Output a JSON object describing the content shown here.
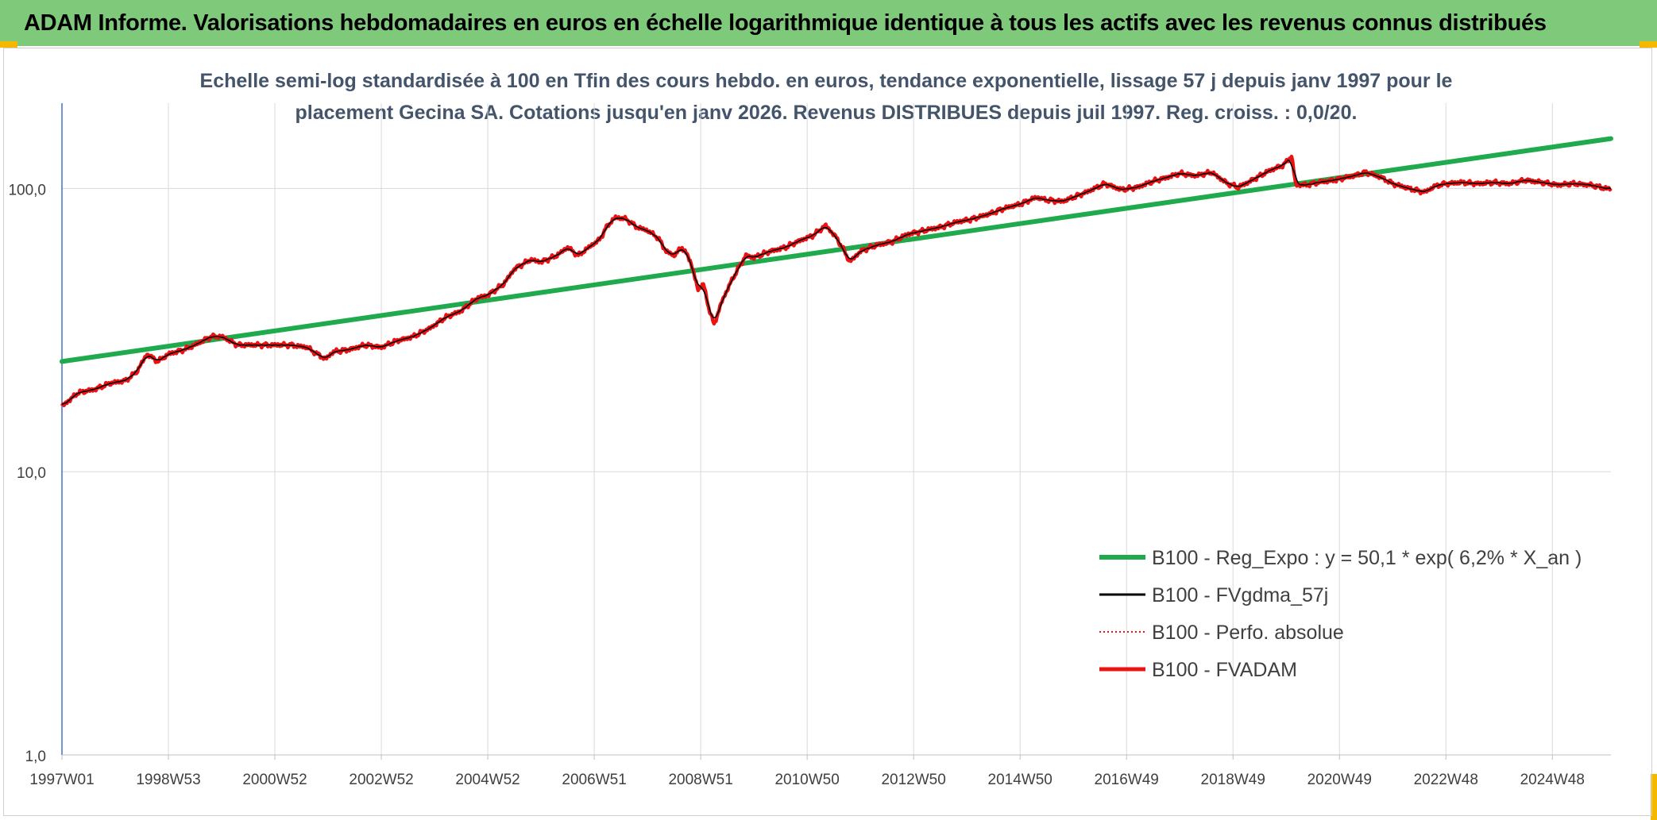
{
  "banner_title": "ADAM Informe. Valorisations hebdomadaires en euros en échelle logarithmique identique à tous les actifs avec les revenus connus distribués",
  "colors": {
    "banner": "#7fc97a",
    "accent": "#f5b800",
    "reg": "#1faa4d",
    "fvgdma": "#000000",
    "perfo": "#e8141a",
    "fvadam": "#ee1111",
    "title": "#44546a"
  },
  "chart_data": {
    "type": "line",
    "title_line1": "Echelle semi-log standardisée à 100 en Tfin des cours hebdo. en euros, tendance exponentielle, lissage 57 j depuis janv 1997 pour le",
    "title_line2": "placement Gecina SA. Cotations jusqu'en janv 2026. Revenus DISTRIBUES depuis juil 1997. Reg. croiss. : 0,0/20.",
    "y_scale": "log",
    "ylim": [
      1,
      200
    ],
    "y_ticks": [
      {
        "value": 1,
        "label": "1,0"
      },
      {
        "value": 10,
        "label": "10,0"
      },
      {
        "value": 100,
        "label": "100,0"
      }
    ],
    "xlim": [
      1997.0,
      2026.1
    ],
    "x_ticks": [
      {
        "value": 1997.0,
        "label": "1997W01"
      },
      {
        "value": 1999.0,
        "label": "1998W53"
      },
      {
        "value": 2001.0,
        "label": "2000W52"
      },
      {
        "value": 2003.0,
        "label": "2002W52"
      },
      {
        "value": 2005.0,
        "label": "2004W52"
      },
      {
        "value": 2007.0,
        "label": "2006W51"
      },
      {
        "value": 2009.0,
        "label": "2008W51"
      },
      {
        "value": 2011.0,
        "label": "2010W50"
      },
      {
        "value": 2013.0,
        "label": "2012W50"
      },
      {
        "value": 2015.0,
        "label": "2014W50"
      },
      {
        "value": 2017.0,
        "label": "2016W49"
      },
      {
        "value": 2019.0,
        "label": "2018W49"
      },
      {
        "value": 2021.0,
        "label": "2020W49"
      },
      {
        "value": 2023.0,
        "label": "2022W48"
      },
      {
        "value": 2025.0,
        "label": "2024W48"
      }
    ],
    "legend_position": "bottom-right",
    "grid": true,
    "series": [
      {
        "name": "B100 - Reg_Expo : y = 50,1 * exp( 6,2% *  X_an )",
        "style": "thick-green",
        "points": [
          [
            1997.0,
            24.5
          ],
          [
            2026.1,
            150
          ]
        ]
      },
      {
        "name": "B100 - FVgdma_57j",
        "style": "thin-black",
        "smooth_of": "fvadam"
      },
      {
        "name": "B100 - Perfo. absolue",
        "style": "dotted-red",
        "same_as": "fvadam"
      },
      {
        "name": "B100 - FVADAM",
        "style": "thick-red",
        "points": [
          [
            1997.0,
            17
          ],
          [
            1997.3,
            19
          ],
          [
            1997.6,
            19.5
          ],
          [
            1997.9,
            20.5
          ],
          [
            1998.2,
            21
          ],
          [
            1998.4,
            22.5
          ],
          [
            1998.6,
            26
          ],
          [
            1998.8,
            24.5
          ],
          [
            1999.0,
            26
          ],
          [
            1999.3,
            27
          ],
          [
            1999.5,
            28
          ],
          [
            1999.8,
            30
          ],
          [
            2000.0,
            30
          ],
          [
            2000.3,
            28
          ],
          [
            2000.6,
            28
          ],
          [
            2001.0,
            28
          ],
          [
            2001.3,
            28
          ],
          [
            2001.6,
            27.5
          ],
          [
            2001.8,
            26
          ],
          [
            2001.95,
            25
          ],
          [
            2002.1,
            26.5
          ],
          [
            2002.4,
            27
          ],
          [
            2002.7,
            28
          ],
          [
            2003.0,
            27.5
          ],
          [
            2003.3,
            29
          ],
          [
            2003.6,
            30
          ],
          [
            2003.9,
            32
          ],
          [
            2004.2,
            35
          ],
          [
            2004.5,
            37
          ],
          [
            2004.8,
            41
          ],
          [
            2005.0,
            42
          ],
          [
            2005.3,
            46
          ],
          [
            2005.5,
            52
          ],
          [
            2005.8,
            56
          ],
          [
            2006.0,
            55
          ],
          [
            2006.3,
            58
          ],
          [
            2006.5,
            62
          ],
          [
            2006.7,
            58
          ],
          [
            2006.9,
            62
          ],
          [
            2007.1,
            66
          ],
          [
            2007.25,
            74
          ],
          [
            2007.4,
            79
          ],
          [
            2007.6,
            78
          ],
          [
            2007.8,
            73
          ],
          [
            2008.0,
            71
          ],
          [
            2008.2,
            67
          ],
          [
            2008.35,
            60
          ],
          [
            2008.5,
            58
          ],
          [
            2008.65,
            62
          ],
          [
            2008.8,
            56
          ],
          [
            2008.95,
            44
          ],
          [
            2009.05,
            46
          ],
          [
            2009.15,
            38
          ],
          [
            2009.25,
            33
          ],
          [
            2009.4,
            40
          ],
          [
            2009.55,
            46
          ],
          [
            2009.7,
            52
          ],
          [
            2009.85,
            58
          ],
          [
            2010.0,
            57
          ],
          [
            2010.3,
            60
          ],
          [
            2010.6,
            62
          ],
          [
            2010.9,
            66
          ],
          [
            2011.1,
            68
          ],
          [
            2011.35,
            74
          ],
          [
            2011.55,
            67
          ],
          [
            2011.7,
            60
          ],
          [
            2011.8,
            55
          ],
          [
            2012.0,
            60
          ],
          [
            2012.3,
            63
          ],
          [
            2012.6,
            65
          ],
          [
            2012.9,
            69
          ],
          [
            2013.2,
            71
          ],
          [
            2013.5,
            73
          ],
          [
            2013.8,
            76
          ],
          [
            2014.1,
            78
          ],
          [
            2014.4,
            81
          ],
          [
            2014.7,
            85
          ],
          [
            2015.0,
            88
          ],
          [
            2015.3,
            93
          ],
          [
            2015.5,
            91
          ],
          [
            2015.8,
            90
          ],
          [
            2016.0,
            93
          ],
          [
            2016.3,
            98
          ],
          [
            2016.6,
            104
          ],
          [
            2016.9,
            99
          ],
          [
            2017.2,
            101
          ],
          [
            2017.5,
            106
          ],
          [
            2017.8,
            110
          ],
          [
            2018.0,
            113
          ],
          [
            2018.3,
            111
          ],
          [
            2018.6,
            114
          ],
          [
            2018.9,
            104
          ],
          [
            2019.1,
            101
          ],
          [
            2019.4,
            108
          ],
          [
            2019.7,
            116
          ],
          [
            2019.95,
            121
          ],
          [
            2020.1,
            130
          ],
          [
            2020.18,
            103
          ],
          [
            2020.4,
            103
          ],
          [
            2020.6,
            105
          ],
          [
            2020.9,
            107
          ],
          [
            2021.2,
            110
          ],
          [
            2021.5,
            114
          ],
          [
            2021.8,
            109
          ],
          [
            2022.0,
            104
          ],
          [
            2022.3,
            100
          ],
          [
            2022.6,
            97
          ],
          [
            2022.8,
            102
          ],
          [
            2023.0,
            104
          ],
          [
            2023.3,
            105
          ],
          [
            2023.6,
            104
          ],
          [
            2023.9,
            105
          ],
          [
            2024.2,
            104
          ],
          [
            2024.5,
            107
          ],
          [
            2024.8,
            105
          ],
          [
            2025.1,
            103
          ],
          [
            2025.4,
            104
          ],
          [
            2025.7,
            103
          ],
          [
            2026.0,
            100
          ],
          [
            2026.1,
            100
          ]
        ]
      }
    ]
  }
}
